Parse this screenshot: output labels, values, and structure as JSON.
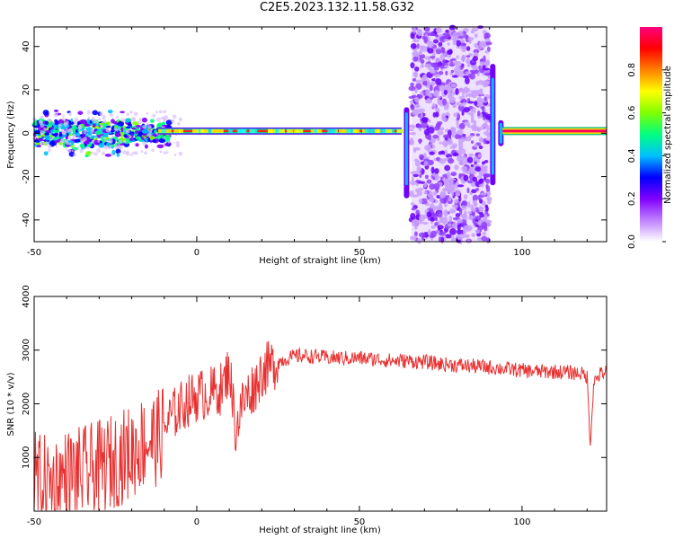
{
  "title": "C2E5.2023.132.11.58.G32",
  "chart_data": [
    {
      "type": "heatmap",
      "xlabel": "Height of straight line (km)",
      "ylabel": "Frequency (Hz)",
      "xlim": [
        -50,
        126
      ],
      "ylim": [
        -50,
        49
      ],
      "x_ticks": [
        -50,
        0,
        50,
        100
      ],
      "y_ticks": [
        -40,
        -20,
        0,
        20,
        40
      ],
      "grid": false,
      "colorbar": {
        "label": "Normalized spectral amplitude",
        "range": [
          0,
          1
        ],
        "ticks": [
          "0.0",
          "0.2",
          "0.4",
          "0.6",
          "0.8"
        ],
        "colors": [
          "#ffffff",
          "#c080ff",
          "#8000ff",
          "#0000ff",
          "#00c0ff",
          "#00ff80",
          "#80ff00",
          "#ffff00",
          "#ff8000",
          "#ff0000",
          "#ff0080"
        ]
      },
      "features": {
        "carrier_band": {
          "x": [
            -50,
            126
          ],
          "frequency_hz": 1,
          "amplitude": 0.9
        },
        "noisy_region_low": {
          "x": [
            -50,
            -12
          ],
          "frequency_hz": [
            -6,
            6
          ],
          "amplitude": 0.3
        },
        "broadband_scatter": {
          "x": [
            66,
            90
          ],
          "frequency_hz": [
            -50,
            49
          ],
          "amplitude": 0.15
        }
      }
    },
    {
      "type": "line",
      "xlabel": "Height of straight line (km)",
      "ylabel": "SNR (10 * v/v)",
      "xlim": [
        -50,
        126
      ],
      "ylim": [
        0,
        4000
      ],
      "x_ticks": [
        -50,
        0,
        50,
        100
      ],
      "y_ticks": [
        1000,
        2000,
        3000,
        4000
      ],
      "grid": false,
      "line_color": "#e83030",
      "series": [
        {
          "x": [
            -50,
            -45,
            -40,
            -35,
            -30,
            -25,
            -20,
            -16,
            -12,
            -8,
            -4,
            0,
            4,
            8,
            10,
            12,
            14,
            16,
            18,
            20,
            24,
            28,
            32,
            36,
            40,
            45,
            50,
            55,
            60,
            65,
            70,
            75,
            80,
            85,
            90,
            95,
            100,
            105,
            110,
            115,
            118,
            120,
            121,
            122,
            124,
            126
          ],
          "values": [
            600,
            500,
            650,
            700,
            800,
            950,
            1100,
            1300,
            1350,
            1750,
            2000,
            2150,
            2200,
            2300,
            2700,
            1500,
            2000,
            2200,
            2350,
            2600,
            2750,
            2850,
            2900,
            2880,
            2860,
            2850,
            2850,
            2830,
            2800,
            2800,
            2780,
            2740,
            2720,
            2700,
            2680,
            2650,
            2620,
            2600,
            2600,
            2580,
            2570,
            2500,
            1250,
            2400,
            2550,
            2600
          ]
        }
      ]
    }
  ]
}
